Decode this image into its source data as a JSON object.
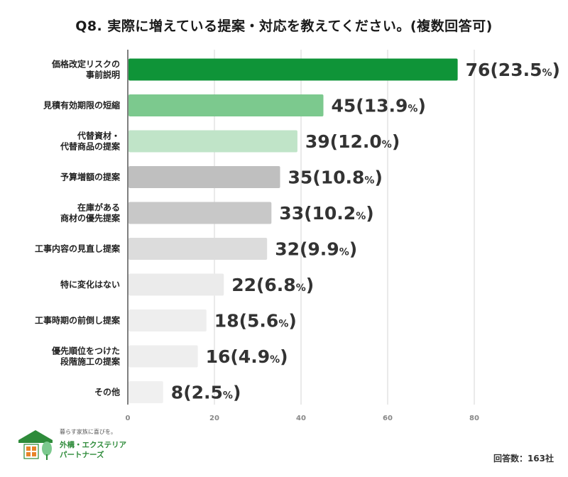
{
  "title": "Q8. 実際に増えている提案・対応を教えてください。(複数回答可)",
  "chart_data": {
    "type": "bar",
    "orientation": "horizontal",
    "title": "Q8. 実際に増えている提案・対応を教えてください。(複数回答可)",
    "categories": [
      [
        "価格改定リスクの",
        "事前説明"
      ],
      [
        "見積有効期限の短縮"
      ],
      [
        "代替資材・",
        "代替商品の提案"
      ],
      [
        "予算増額の提案"
      ],
      [
        "在庫がある",
        "商材の優先提案"
      ],
      [
        "工事内容の見直し提案"
      ],
      [
        "特に変化はない"
      ],
      [
        "工事時期の前倒し提案"
      ],
      [
        "優先順位をつけた",
        "段階施工の提案"
      ],
      [
        "その他"
      ]
    ],
    "values": [
      76,
      45,
      39,
      35,
      33,
      32,
      22,
      18,
      16,
      8
    ],
    "percents": [
      "23.5",
      "13.9",
      "12.0",
      "10.8",
      "10.2",
      "9.9",
      "6.8",
      "5.6",
      "4.9",
      "2.5"
    ],
    "colors": [
      "#0f9438",
      "#7cc98e",
      "#c0e4c8",
      "#bfbfbf",
      "#c8c8c8",
      "#dcdcdc",
      "#ebebeb",
      "#eeeeee",
      "#eeeeee",
      "#f0f0f0"
    ],
    "xlim": [
      0,
      80
    ],
    "xticks": [
      0,
      20,
      40,
      60,
      80
    ],
    "grid": true
  },
  "logo": {
    "tagline": "暮らす家族に喜びを。",
    "name_line1": "外構・エクステリア",
    "name_line2": "パートナーズ"
  },
  "respondents": "回答数：163社"
}
